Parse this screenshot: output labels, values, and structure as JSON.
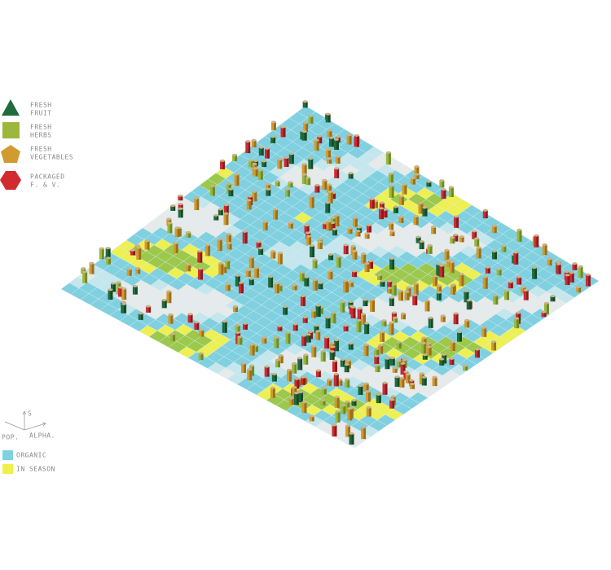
{
  "legend": {
    "items": [
      {
        "lines": [
          "FRESH",
          "FRUIT"
        ]
      },
      {
        "lines": [
          "FRESH",
          "HERBS"
        ]
      },
      {
        "lines": [
          "FRESH",
          "VEGETABLES"
        ]
      },
      {
        "lines": [
          "PACKAGED",
          "F. & V."
        ]
      }
    ]
  },
  "axes": {
    "up": "S",
    "left": "POP.",
    "right": "ALPHA."
  },
  "surface_legend": {
    "items": [
      "ORGANIC",
      "IN SEASON"
    ]
  }
}
